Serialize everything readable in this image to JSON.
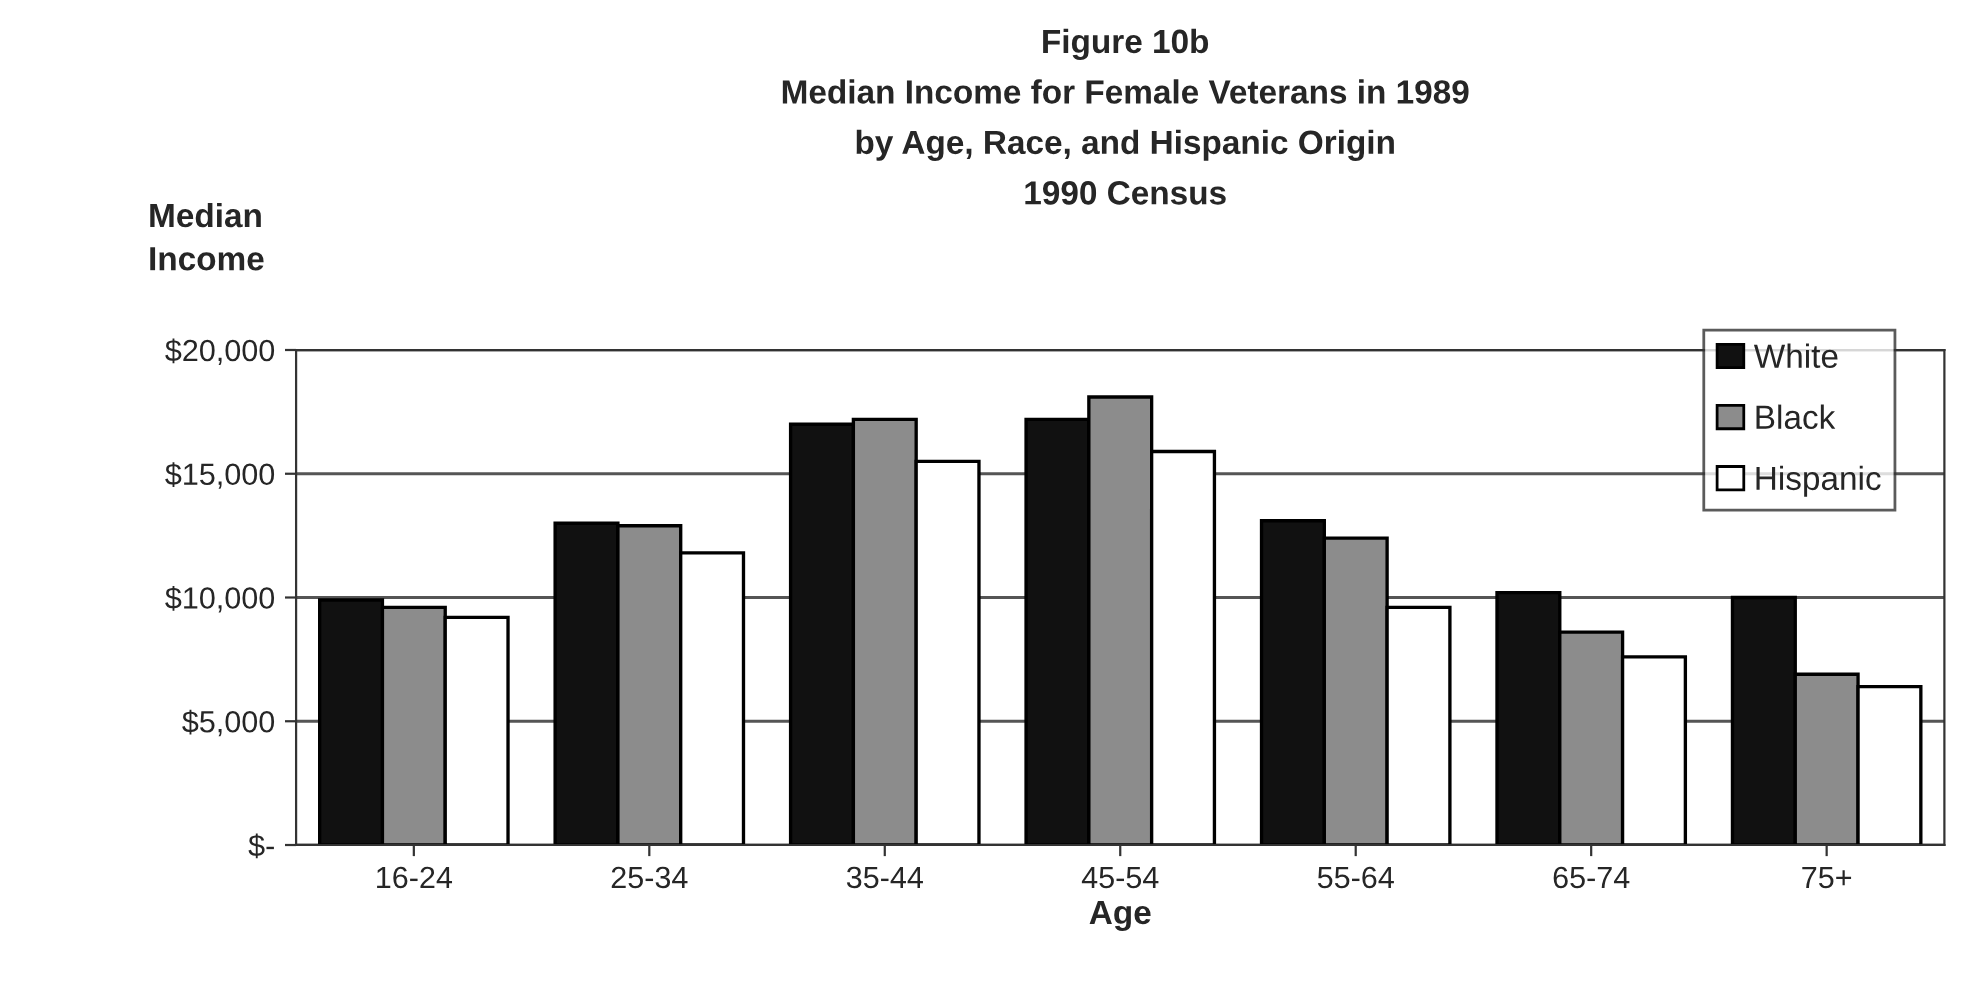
{
  "chart_data": {
    "type": "bar",
    "title": "Figure 10b\nMedian Income for Female Veterans in 1989\nby Age, Race, and Hispanic Origin\n1990 Census",
    "xlabel": "Age",
    "ylabel": "Median\nIncome",
    "categories": [
      "16-24",
      "25-34",
      "35-44",
      "45-54",
      "55-64",
      "65-74",
      "75+"
    ],
    "series": [
      {
        "name": "White",
        "color": "#111111",
        "values": [
          9900,
          13000,
          17000,
          17200,
          13100,
          10200,
          10000
        ]
      },
      {
        "name": "Black",
        "color": "#8c8c8c",
        "values": [
          9600,
          12900,
          17200,
          18100,
          12400,
          8600,
          6900
        ]
      },
      {
        "name": "Hispanic",
        "color": "#ffffff",
        "values": [
          9200,
          11800,
          15500,
          15900,
          9600,
          7600,
          6400
        ]
      }
    ],
    "ylim": [
      0,
      20000
    ],
    "yticks": [
      {
        "value": 0,
        "label": "$-"
      },
      {
        "value": 5000,
        "label": "$5,000"
      },
      {
        "value": 10000,
        "label": "$10,000"
      },
      {
        "value": 15000,
        "label": "$15,000"
      },
      {
        "value": 20000,
        "label": "$20,000"
      }
    ],
    "grid": "y",
    "legend": "top right"
  }
}
